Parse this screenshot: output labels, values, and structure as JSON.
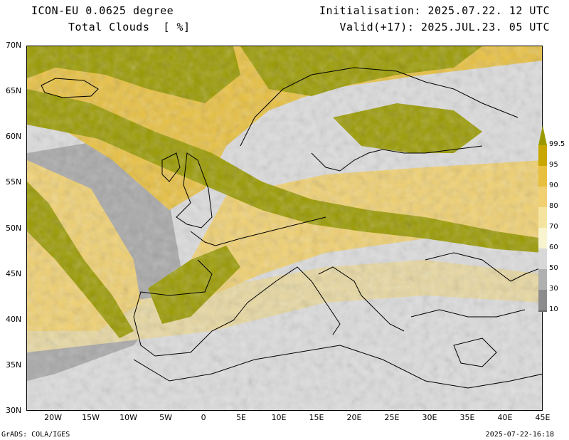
{
  "header": {
    "model": "ICON-EU 0.0625 degree",
    "variable": "Total Clouds  [ %]",
    "init": "Initialisation: 2025.07.22. 12 UTC",
    "valid": "Valid(+17): 2025.JUL.23. 05 UTC"
  },
  "axes": {
    "lat_labels": [
      "70N",
      "65N",
      "60N",
      "55N",
      "50N",
      "45N",
      "40N",
      "35N",
      "30N"
    ],
    "lat_values": [
      70,
      65,
      60,
      55,
      50,
      45,
      40,
      35,
      30
    ],
    "lon_labels": [
      "20W",
      "15W",
      "10W",
      "5W",
      "0",
      "5E",
      "10E",
      "15E",
      "20E",
      "25E",
      "30E",
      "35E",
      "40E",
      "45E"
    ],
    "lon_values": [
      -20,
      -15,
      -10,
      -5,
      0,
      5,
      10,
      15,
      20,
      25,
      30,
      35,
      40,
      45
    ],
    "lon_range": [
      -23.5,
      45
    ],
    "lat_range": [
      30,
      70
    ]
  },
  "legend": {
    "labels": [
      "99.5",
      "95",
      "90",
      "80",
      "70",
      "60",
      "50",
      "30",
      "10"
    ],
    "values": [
      99.5,
      95,
      90,
      80,
      70,
      60,
      50,
      30,
      10
    ],
    "colors": [
      "#c8a800",
      "#e8c040",
      "#f0d070",
      "#f4e4a0",
      "#f8f4d0",
      "#d8d8d8",
      "#b0b0b0",
      "#8c8c8c",
      "#686868"
    ],
    "overcast_color": "#9a9a00"
  },
  "footer": {
    "left": "GrADS: COLA/IGES",
    "right": "2025-07-22-16:18"
  }
}
